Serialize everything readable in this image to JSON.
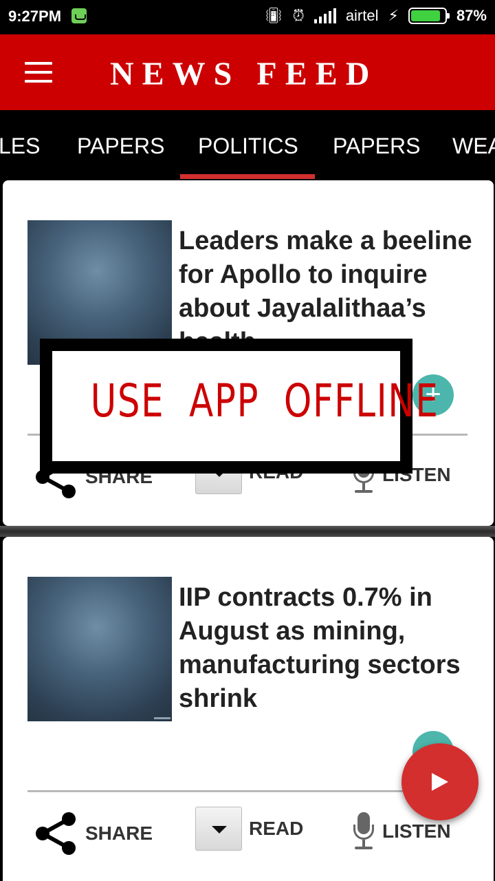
{
  "status_bar": {
    "time": "9:27PM",
    "carrier": "airtel",
    "battery_percent": "87%",
    "battery_level": 0.87
  },
  "header": {
    "title": "NEWS FEED",
    "menu_icon": "hamburger-menu-icon"
  },
  "tabs": [
    {
      "label": "LES"
    },
    {
      "label": "PAPERS"
    },
    {
      "label": "POLITICS",
      "selected": true
    },
    {
      "label": "PAPERS"
    },
    {
      "label": "WEA"
    }
  ],
  "articles": [
    {
      "headline": "Leaders make a beeline for Apollo to inquire about Jayalalithaa’s health",
      "actions": {
        "share": "SHARE",
        "read": "READ",
        "listen": "LISTEN"
      }
    },
    {
      "headline": "IIP contracts 0.7% in August as mining, manufacturing sectors shrink",
      "actions": {
        "share": "SHARE",
        "read": "READ",
        "listen": "LISTEN"
      }
    }
  ],
  "overlay": {
    "text": "USE  APP  OFFLINE"
  },
  "colors": {
    "header_red": "#cc0000",
    "tab_indicator": "#d32f2f",
    "plus_teal": "#4db6ac",
    "fab_red": "#d32f2f"
  }
}
